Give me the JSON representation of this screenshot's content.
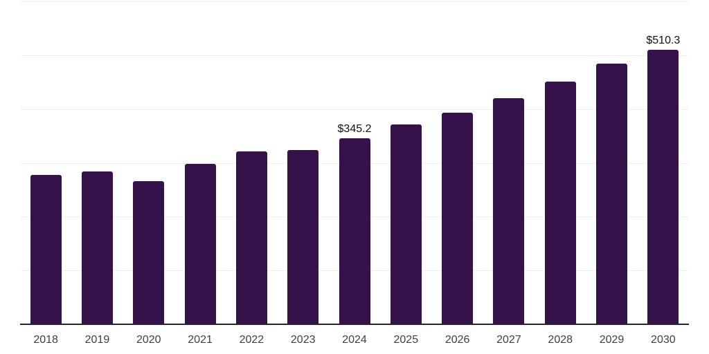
{
  "chart": {
    "background_color": "#ffffff",
    "bar_color": "#36124A",
    "grid_color": "#efefef",
    "axis_color": "#262626",
    "tick_label_color": "#404040",
    "data_label_color": "#111111"
  },
  "chart_data": {
    "type": "bar",
    "title": "",
    "xlabel": "",
    "ylabel": "",
    "categories": [
      "2018",
      "2019",
      "2020",
      "2021",
      "2022",
      "2023",
      "2024",
      "2025",
      "2026",
      "2027",
      "2028",
      "2029",
      "2030"
    ],
    "values": [
      278.0,
      283.5,
      266.3,
      298.7,
      321.7,
      324.0,
      345.2,
      371.7,
      393.1,
      420.0,
      450.5,
      484.0,
      510.3
    ],
    "data_labels": [
      {
        "category": "2024",
        "text": "$345.2"
      },
      {
        "category": "2030",
        "text": "$510.3"
      }
    ],
    "ylim": [
      0,
      600
    ],
    "grid_step": 100,
    "grid": true,
    "legend": false,
    "y_tick_labels_visible": false
  }
}
